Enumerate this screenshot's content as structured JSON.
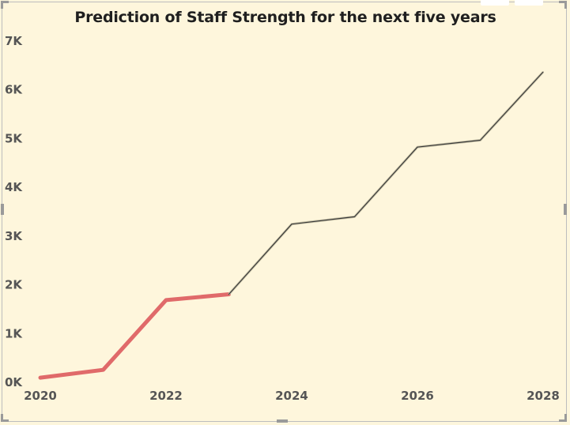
{
  "chart_data": {
    "type": "line",
    "title": "Prediction of Staff Strength for the next five years",
    "xlabel": "",
    "ylabel": "",
    "x": [
      2020,
      2021,
      2022,
      2023,
      2024,
      2025,
      2026,
      2027,
      2028
    ],
    "xlim": [
      2020,
      2028
    ],
    "ylim": [
      0,
      7000
    ],
    "x_ticks": [
      "2020",
      "2022",
      "2024",
      "2026",
      "2028"
    ],
    "y_ticks": [
      "0K",
      "1K",
      "2K",
      "3K",
      "4K",
      "5K",
      "6K",
      "7K"
    ],
    "series": [
      {
        "role": "actual",
        "color": "#e06a6a",
        "x": [
          2020,
          2021,
          2022,
          2023
        ],
        "values": [
          80,
          240,
          1670,
          1790
        ]
      },
      {
        "role": "forecast",
        "color": "#3a3a3a",
        "x": [
          2023,
          2024,
          2025,
          2026,
          2027,
          2028
        ],
        "values": [
          1790,
          3230,
          3380,
          4810,
          4950,
          6350
        ]
      }
    ],
    "grid": false,
    "legend": "none"
  }
}
